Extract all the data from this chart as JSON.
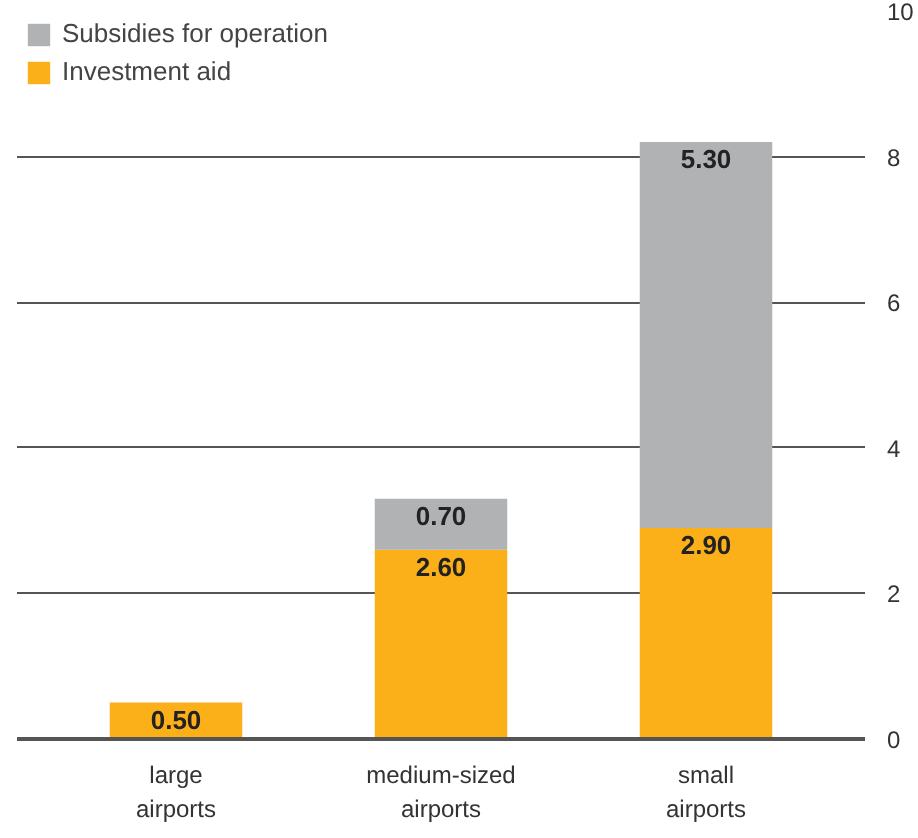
{
  "chart_data": {
    "type": "bar",
    "stacked": true,
    "categories": [
      "large airports",
      "medium-sized airports",
      "small airports"
    ],
    "series": [
      {
        "name": "Investment aid",
        "color": "#fbb01a",
        "values": [
          0.5,
          2.6,
          2.9
        ],
        "value_labels": [
          "0.50",
          "2.60",
          "2.90"
        ]
      },
      {
        "name": "Subsidies for operation",
        "color": "#b1b2b4",
        "values": [
          null,
          0.7,
          5.3
        ],
        "value_labels": [
          null,
          "0.70",
          "5.30"
        ]
      }
    ],
    "ylim": [
      0,
      10
    ],
    "yticks": [
      0,
      2,
      4,
      6,
      8,
      10
    ],
    "grid": "y",
    "legend": "top left"
  }
}
